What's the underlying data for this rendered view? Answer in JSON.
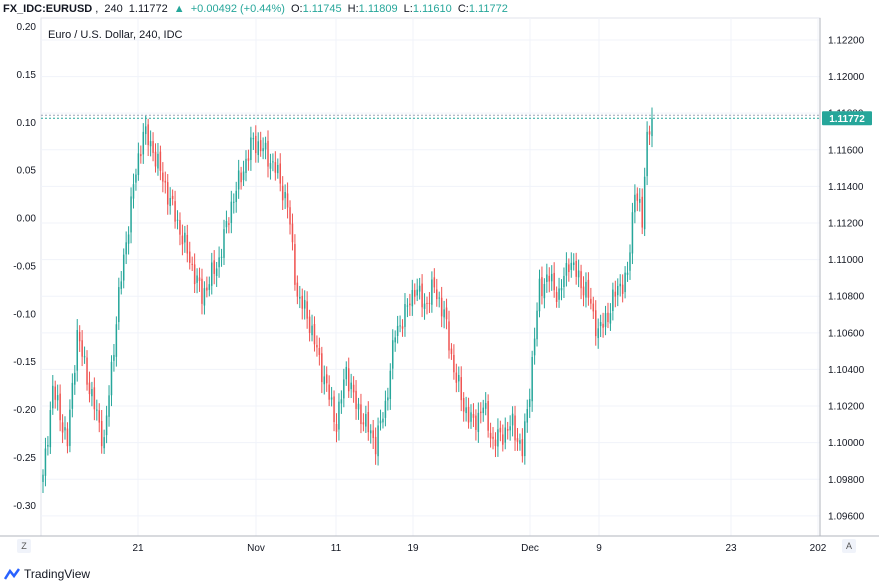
{
  "header": {
    "symbol": "FX_IDC:EURUSD",
    "interval": "240",
    "last": "1.11772",
    "direction_icon": "triangle-up-icon",
    "change": "+0.00492 (+0.44%)",
    "open_label": "O:",
    "open": "1.11745",
    "high_label": "H:",
    "high": "1.11809",
    "low_label": "L:",
    "low": "1.11610",
    "close_label": "C:",
    "close": "1.11772"
  },
  "footer": {
    "brand": "TradingView",
    "brand_icon": "tradingview-logo-icon",
    "left_button": "Z",
    "right_button": "A"
  },
  "colors": {
    "up": "#26a69a",
    "down": "#ef5350",
    "price_tag": "#26a69a",
    "grid": "#f0f3fa",
    "axis_text": "#131722"
  },
  "chart_data": {
    "type": "candlestick",
    "title": "Euro / U.S. Dollar, 240, IDC",
    "xlabel": "",
    "ylabel": "",
    "x_ticks": [
      "21",
      "Nov",
      "11",
      "19",
      "Dec",
      "9",
      "23",
      "202"
    ],
    "left_axis": {
      "ticks": [
        "0.20",
        "0.15",
        "0.10",
        "0.05",
        "0.00",
        "-0.05",
        "-0.10",
        "-0.15",
        "-0.20",
        "-0.25",
        "-0.30"
      ],
      "range": [
        -0.332,
        0.209
      ]
    },
    "right_axis": {
      "ticks": [
        "1.12200",
        "1.12000",
        "1.11800",
        "1.11600",
        "1.11400",
        "1.11200",
        "1.11000",
        "1.10800",
        "1.10600",
        "1.10400",
        "1.10200",
        "1.10000",
        "1.09800",
        "1.09600"
      ],
      "range": [
        1.0949,
        1.1232
      ]
    },
    "last_price": "1.11772",
    "last_price_value": 1.11772,
    "grid": true,
    "anchors": [
      [
        0,
        1.098
      ],
      [
        4,
        1.103
      ],
      [
        10,
        1.1
      ],
      [
        14,
        1.106
      ],
      [
        19,
        1.103
      ],
      [
        25,
        1.1
      ],
      [
        31,
        1.108
      ],
      [
        37,
        1.114
      ],
      [
        41,
        1.117
      ],
      [
        45,
        1.116
      ],
      [
        50,
        1.114
      ],
      [
        55,
        1.112
      ],
      [
        60,
        1.11
      ],
      [
        65,
        1.108
      ],
      [
        72,
        1.11
      ],
      [
        77,
        1.113
      ],
      [
        82,
        1.115
      ],
      [
        86,
        1.1165
      ],
      [
        90,
        1.116
      ],
      [
        95,
        1.115
      ],
      [
        100,
        1.113
      ],
      [
        104,
        1.108
      ],
      [
        108,
        1.107
      ],
      [
        112,
        1.105
      ],
      [
        116,
        1.103
      ],
      [
        120,
        1.101
      ],
      [
        124,
        1.104
      ],
      [
        128,
        1.102
      ],
      [
        132,
        1.101
      ],
      [
        136,
        1.1
      ],
      [
        140,
        1.102
      ],
      [
        144,
        1.106
      ],
      [
        148,
        1.107
      ],
      [
        152,
        1.1085
      ],
      [
        156,
        1.1075
      ],
      [
        160,
        1.1085
      ],
      [
        164,
        1.107
      ],
      [
        168,
        1.104
      ],
      [
        172,
        1.102
      ],
      [
        176,
        1.101
      ],
      [
        180,
        1.102
      ],
      [
        184,
        1.1
      ],
      [
        188,
        1.1005
      ],
      [
        192,
        1.101
      ],
      [
        196,
        1.0995
      ],
      [
        199,
        1.103
      ],
      [
        203,
        1.1085
      ],
      [
        207,
        1.109
      ],
      [
        211,
        1.108
      ],
      [
        215,
        1.11
      ],
      [
        219,
        1.109
      ],
      [
        223,
        1.108
      ],
      [
        227,
        1.106
      ],
      [
        231,
        1.107
      ],
      [
        235,
        1.1085
      ],
      [
        239,
        1.109
      ],
      [
        242,
        1.114
      ],
      [
        245,
        1.112
      ],
      [
        247,
        1.117
      ],
      [
        249,
        1.1177
      ]
    ]
  }
}
